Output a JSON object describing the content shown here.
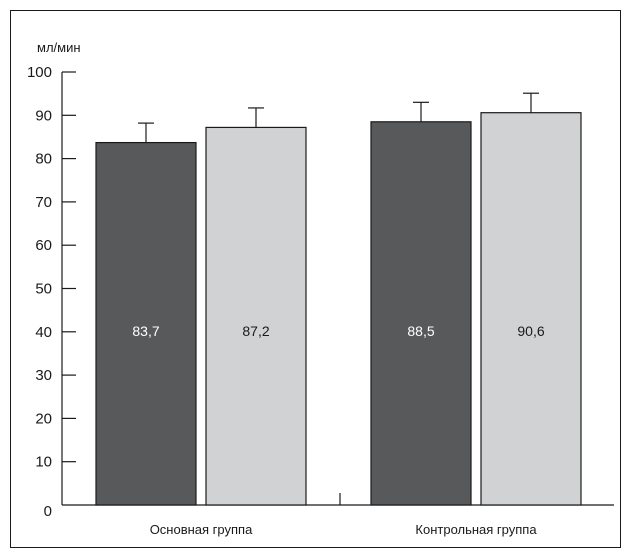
{
  "chart_data": {
    "type": "bar",
    "y_unit_label": "мл/мин",
    "categories": [
      "Основная группа",
      "Контрольная группа"
    ],
    "series": [
      {
        "color": "#58595b",
        "values": [
          83.7,
          88.5
        ],
        "error": [
          4.5,
          4.5
        ]
      },
      {
        "color": "#d1d2d4",
        "values": [
          87.2,
          90.6
        ],
        "error": [
          4.5,
          4.5
        ]
      }
    ],
    "data_labels": [
      [
        "83,7",
        "88,5"
      ],
      [
        "87,2",
        "90,6"
      ]
    ],
    "ylim": [
      0,
      100
    ],
    "yticks": [
      0,
      10,
      20,
      30,
      40,
      50,
      60,
      70,
      80,
      90,
      100
    ],
    "grid": false,
    "legend": "none"
  }
}
